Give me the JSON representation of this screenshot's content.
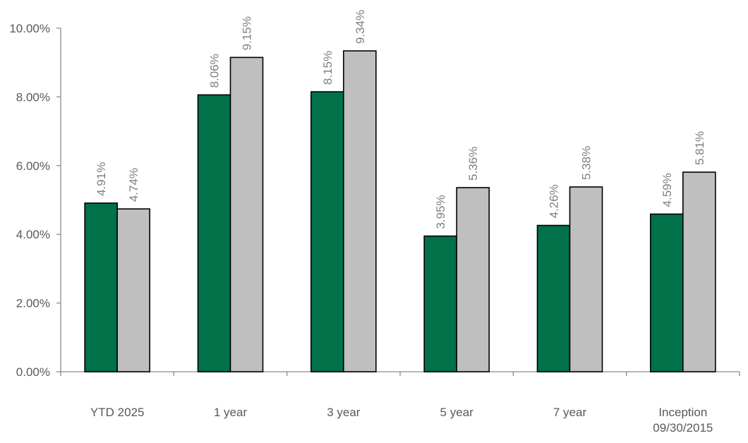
{
  "chart_data": {
    "type": "bar",
    "categories": [
      [
        "YTD 2025"
      ],
      [
        "1 year"
      ],
      [
        "3 year"
      ],
      [
        "5 year"
      ],
      [
        "7 year"
      ],
      [
        "Inception",
        "09/30/2015"
      ]
    ],
    "series": [
      {
        "color": "#007149",
        "values": [
          4.91,
          8.06,
          8.15,
          3.95,
          4.26,
          4.59
        ],
        "labels": [
          "4.91%",
          "8.06%",
          "8.15%",
          "3.95%",
          "4.26%",
          "4.59%"
        ]
      },
      {
        "color": "#bfbfbf",
        "values": [
          4.74,
          9.15,
          9.34,
          5.36,
          5.38,
          5.81
        ],
        "labels": [
          "4.74%",
          "9.15%",
          "9.34%",
          "5.36%",
          "5.38%",
          "5.81%"
        ]
      }
    ],
    "ylim": [
      0,
      10
    ],
    "yticks": [
      0,
      2,
      4,
      6,
      8,
      10
    ],
    "ytick_labels": [
      "0.00%",
      "2.00%",
      "4.00%",
      "6.00%",
      "8.00%",
      "10.00%"
    ],
    "title": "",
    "xlabel": "",
    "ylabel": "",
    "legend": "none",
    "grid": false
  }
}
